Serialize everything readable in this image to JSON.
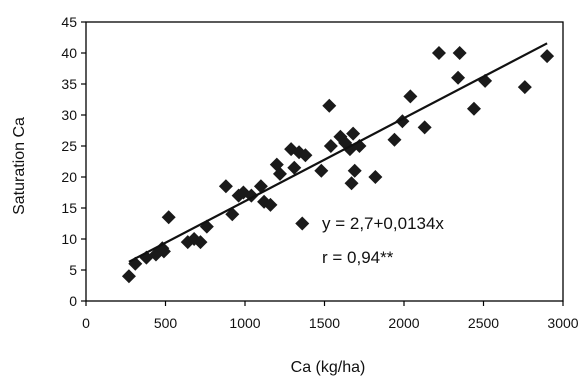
{
  "chart_data": {
    "type": "scatter",
    "title": "",
    "xlabel": "Ca (kg/ha)",
    "ylabel": "Saturation Ca",
    "xlim": [
      0,
      3000
    ],
    "ylim": [
      0,
      45
    ],
    "xticks": [
      "0",
      "500",
      "1000",
      "1500",
      "2000",
      "2500",
      "3000"
    ],
    "yticks": [
      "0",
      "5",
      "10",
      "15",
      "20",
      "25",
      "30",
      "35",
      "40",
      "45"
    ],
    "grid": false,
    "legend": "none",
    "marker": "diamond",
    "marker_color": "#1a1a1a",
    "line_color": "#111111",
    "annotations": [
      "y = 2,7+0,0134x",
      "r = 0,94**"
    ],
    "fit_line": {
      "intercept": 2.7,
      "slope": 0.0134,
      "x_range": [
        270,
        2900
      ]
    },
    "series": [
      {
        "values": [
          {
            "x": 270,
            "y": 4
          },
          {
            "x": 310,
            "y": 6
          },
          {
            "x": 380,
            "y": 7
          },
          {
            "x": 440,
            "y": 7.5
          },
          {
            "x": 480,
            "y": 8.5
          },
          {
            "x": 490,
            "y": 8
          },
          {
            "x": 520,
            "y": 13.5
          },
          {
            "x": 640,
            "y": 9.5
          },
          {
            "x": 680,
            "y": 10
          },
          {
            "x": 720,
            "y": 9.5
          },
          {
            "x": 760,
            "y": 12
          },
          {
            "x": 880,
            "y": 18.5
          },
          {
            "x": 920,
            "y": 14
          },
          {
            "x": 960,
            "y": 17
          },
          {
            "x": 990,
            "y": 17.5
          },
          {
            "x": 1040,
            "y": 17
          },
          {
            "x": 1100,
            "y": 18.5
          },
          {
            "x": 1120,
            "y": 16
          },
          {
            "x": 1160,
            "y": 15.5
          },
          {
            "x": 1200,
            "y": 22
          },
          {
            "x": 1220,
            "y": 20.5
          },
          {
            "x": 1290,
            "y": 24.5
          },
          {
            "x": 1310,
            "y": 21.5
          },
          {
            "x": 1340,
            "y": 24
          },
          {
            "x": 1380,
            "y": 23.5
          },
          {
            "x": 1360,
            "y": 12.5
          },
          {
            "x": 1480,
            "y": 21
          },
          {
            "x": 1530,
            "y": 31.5
          },
          {
            "x": 1540,
            "y": 25
          },
          {
            "x": 1600,
            "y": 26.5
          },
          {
            "x": 1630,
            "y": 25.5
          },
          {
            "x": 1660,
            "y": 24.5
          },
          {
            "x": 1680,
            "y": 27
          },
          {
            "x": 1670,
            "y": 19
          },
          {
            "x": 1690,
            "y": 21
          },
          {
            "x": 1720,
            "y": 25
          },
          {
            "x": 1820,
            "y": 20
          },
          {
            "x": 1940,
            "y": 26
          },
          {
            "x": 1990,
            "y": 29
          },
          {
            "x": 2040,
            "y": 33
          },
          {
            "x": 2130,
            "y": 28
          },
          {
            "x": 2220,
            "y": 40
          },
          {
            "x": 2340,
            "y": 36
          },
          {
            "x": 2350,
            "y": 40
          },
          {
            "x": 2440,
            "y": 31
          },
          {
            "x": 2510,
            "y": 35.5
          },
          {
            "x": 2760,
            "y": 34.5
          },
          {
            "x": 2900,
            "y": 39.5
          }
        ]
      }
    ]
  }
}
